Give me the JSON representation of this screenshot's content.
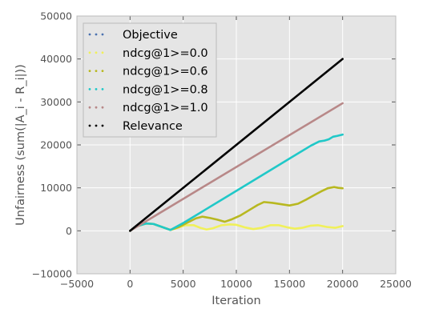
{
  "chart_data": {
    "type": "line",
    "title": "",
    "xlabel": "Iteration",
    "ylabel": "Unfairness (sum(|A_i - R_i|))",
    "xlim": [
      -5000,
      25000
    ],
    "ylim": [
      -10000,
      50000
    ],
    "xticks": [
      -5000,
      0,
      5000,
      10000,
      15000,
      20000,
      25000
    ],
    "yticks": [
      -10000,
      0,
      10000,
      20000,
      30000,
      40000,
      50000
    ],
    "grid": true,
    "background": "#e5e5e5",
    "legend_position": "top-left",
    "series": [
      {
        "name": "Objective",
        "color": "#4c72b0",
        "x": [],
        "y": []
      },
      {
        "name": "ndcg@1>=0.0",
        "color": "#f0f05a",
        "x": [
          0,
          700,
          1500,
          2200,
          3000,
          3800,
          4500,
          5200,
          6000,
          6600,
          7200,
          7800,
          8600,
          9400,
          10000,
          10800,
          11600,
          12400,
          13200,
          14000,
          14800,
          15500,
          16200,
          17000,
          17700,
          18500,
          19300,
          20000
        ],
        "y": [
          0,
          1100,
          1700,
          1600,
          900,
          200,
          700,
          1300,
          1300,
          700,
          300,
          600,
          1300,
          1500,
          1400,
          800,
          400,
          700,
          1300,
          1300,
          800,
          500,
          700,
          1200,
          1300,
          900,
          700,
          1100
        ]
      },
      {
        "name": "ndcg@1>=0.6",
        "color": "#b8b820",
        "x": [
          0,
          700,
          1500,
          2200,
          3000,
          3800,
          4600,
          5400,
          6200,
          6800,
          7500,
          8200,
          8900,
          9600,
          10400,
          11200,
          12000,
          12600,
          13400,
          14200,
          15000,
          15800,
          16600,
          17400,
          18000,
          18600,
          19200,
          19600,
          20000
        ],
        "y": [
          0,
          1100,
          1700,
          1600,
          900,
          200,
          900,
          1900,
          2900,
          3300,
          3000,
          2600,
          2100,
          2700,
          3600,
          4800,
          6000,
          6700,
          6500,
          6200,
          5900,
          6300,
          7300,
          8400,
          9200,
          9900,
          10200,
          10000,
          9900
        ]
      },
      {
        "name": "ndcg@1>=0.8",
        "color": "#20c8c8",
        "x": [
          0,
          700,
          1500,
          2200,
          3000,
          3800,
          5000,
          7000,
          9000,
          11000,
          13000,
          15000,
          17000,
          17800,
          18300,
          18700,
          19100,
          19500,
          20000
        ],
        "y": [
          0,
          1100,
          1700,
          1600,
          900,
          200,
          1800,
          4800,
          7800,
          10800,
          13800,
          16800,
          19800,
          20800,
          21000,
          21300,
          21900,
          22100,
          22400
        ]
      },
      {
        "name": "ndcg@1>=1.0",
        "color": "#b88888",
        "x": [
          0,
          20000
        ],
        "y": [
          0,
          29700
        ]
      },
      {
        "name": "Relevance",
        "color": "#000000",
        "x": [
          0,
          20000
        ],
        "y": [
          0,
          40000
        ]
      }
    ]
  }
}
